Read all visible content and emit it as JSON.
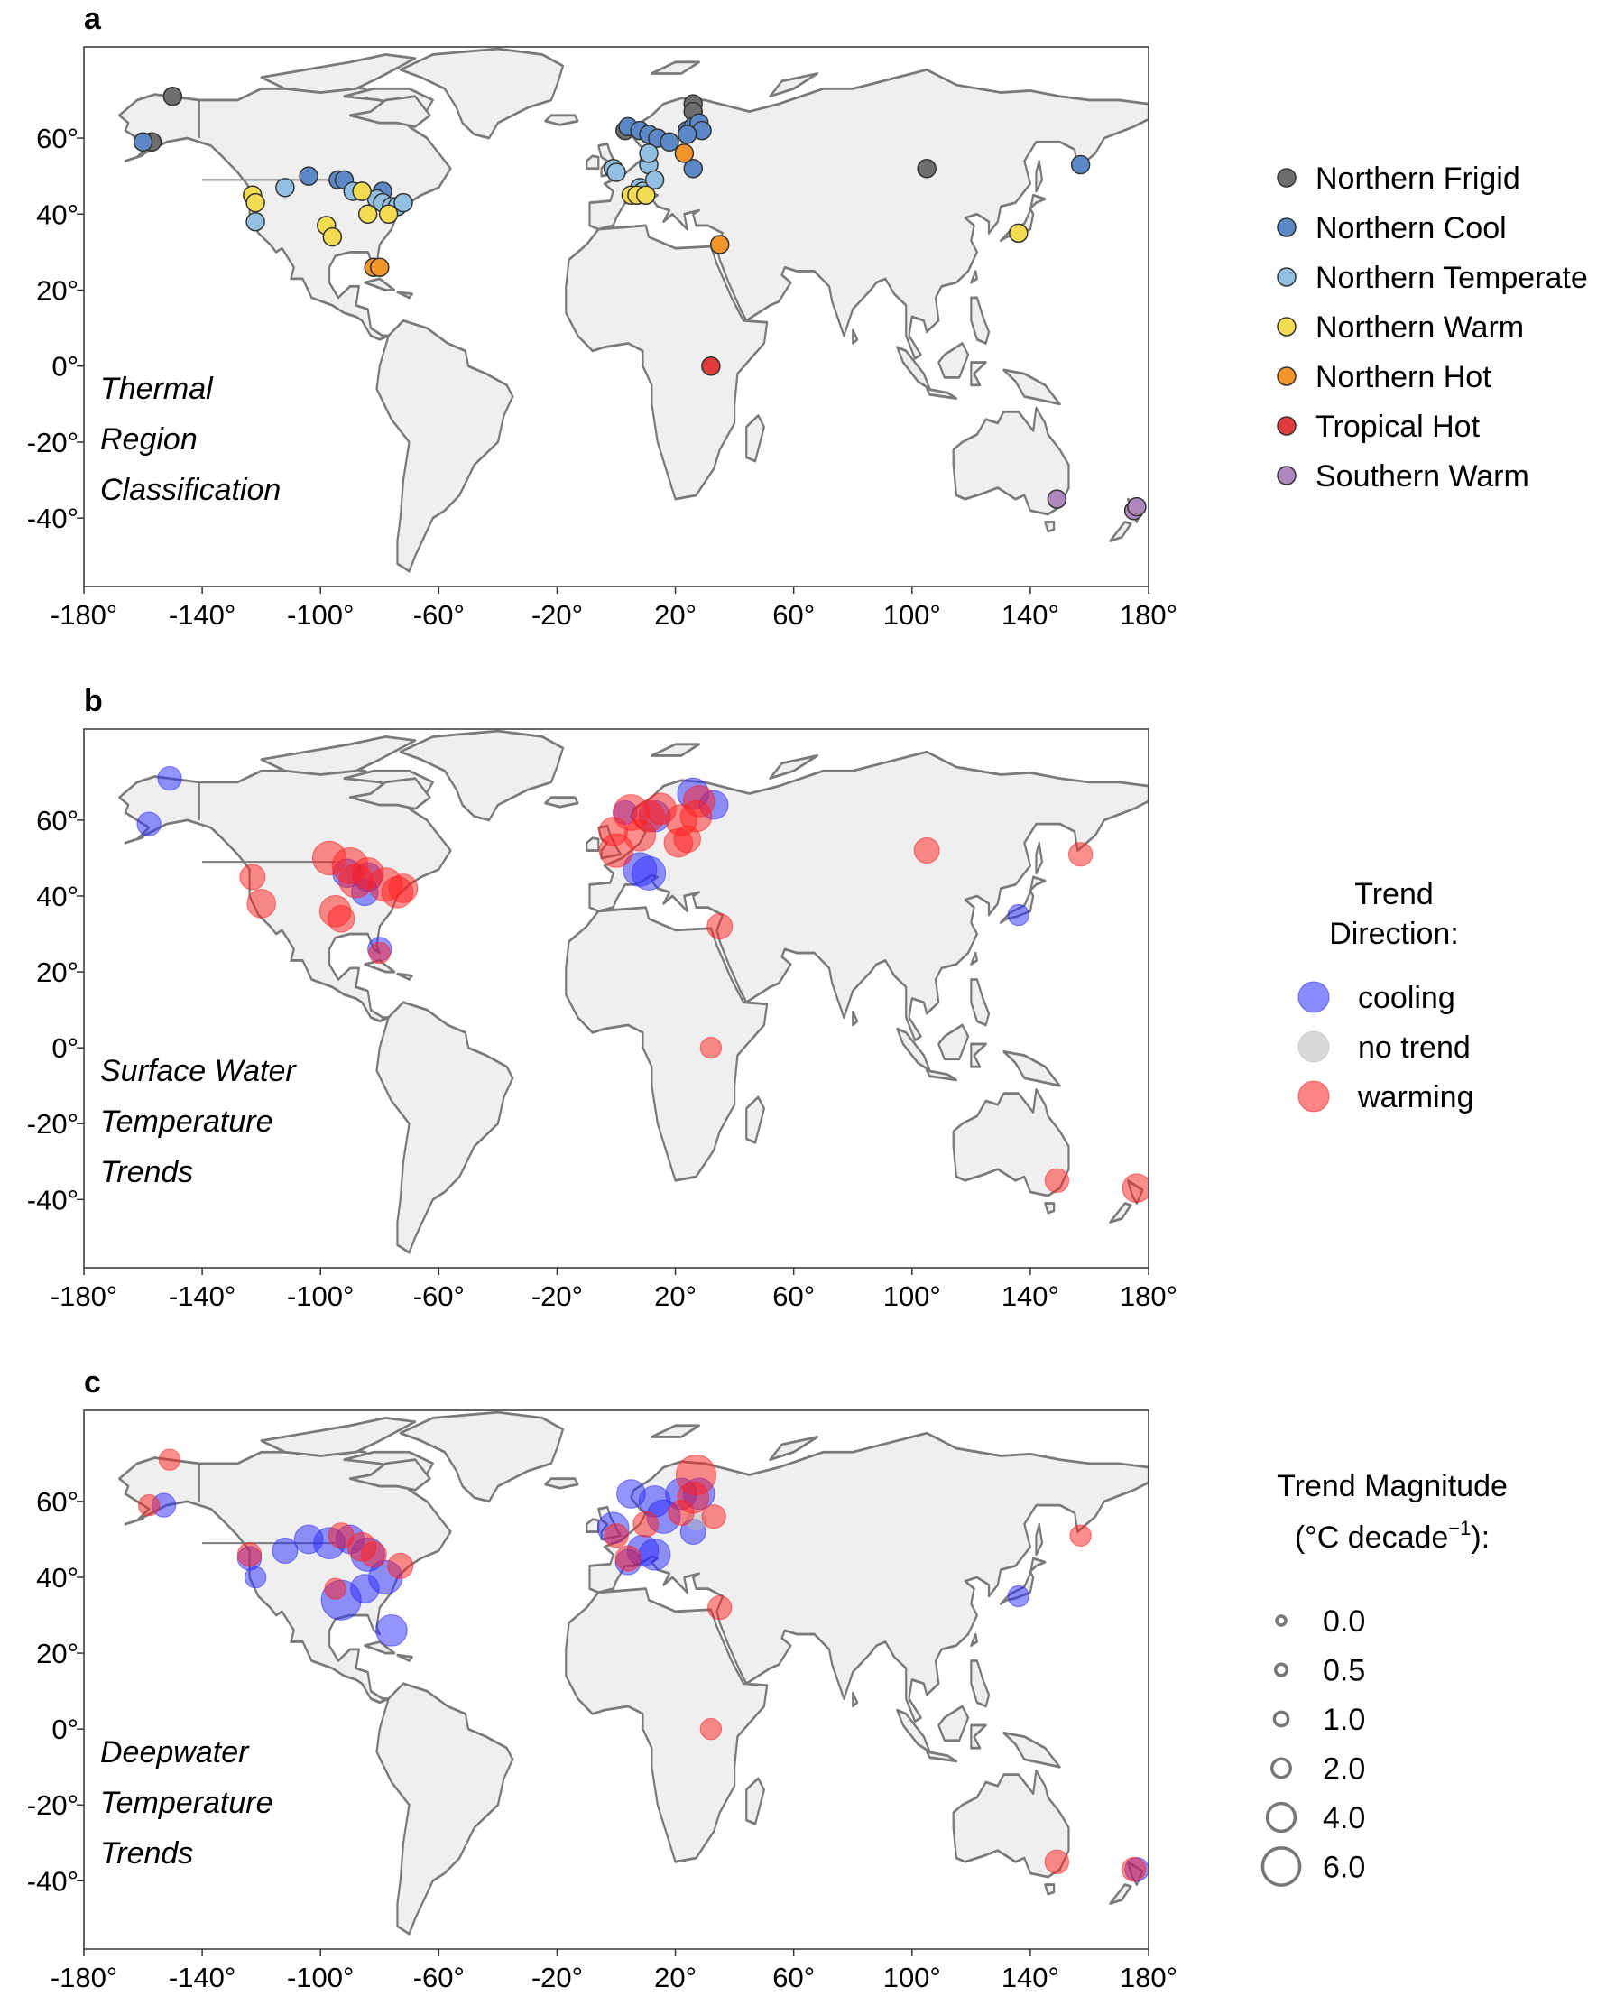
{
  "colors": {
    "land": "#efefef",
    "coast": "#7a7a7a",
    "cooling": "#2b2bff",
    "warming": "#ff2020",
    "no_trend": "#b8b8b8",
    "marker_edge": "#333333"
  },
  "axes": {
    "x_ticks": [
      -180,
      -140,
      -100,
      -60,
      -20,
      20,
      60,
      100,
      140,
      180
    ],
    "x_tick_labels": [
      "-180°",
      "-140°",
      "-100°",
      "-60°",
      "-20°",
      "20°",
      "60°",
      "100°",
      "140°",
      "180°"
    ],
    "y_ticks": [
      60,
      40,
      20,
      0,
      -20,
      -40
    ],
    "y_tick_labels": [
      "60°",
      "40°",
      "20°",
      "0°",
      "-20°",
      "-40°"
    ],
    "xlim": [
      -180,
      180
    ],
    "ylim": [
      -58,
      84
    ]
  },
  "panels": [
    {
      "letter": "a",
      "title_lines": [
        "Thermal",
        "Region",
        "Classification"
      ],
      "legend": {
        "title_lines": [],
        "items": [
          {
            "label": "Northern Frigid",
            "color": "#6e6e6e"
          },
          {
            "label": "Northern Cool",
            "color": "#5b88c7"
          },
          {
            "label": "Northern Temperate",
            "color": "#92c0e2"
          },
          {
            "label": "Northern Warm",
            "color": "#f3dc52"
          },
          {
            "label": "Northern Hot",
            "color": "#f3952a"
          },
          {
            "label": "Tropical Hot",
            "color": "#e03c3c"
          },
          {
            "label": "Southern Warm",
            "color": "#ad87bd"
          }
        ]
      }
    },
    {
      "letter": "b",
      "title_lines": [
        "Surface Water",
        "Temperature",
        "Trends"
      ],
      "legend": {
        "title_lines": [
          "Trend",
          "Direction:"
        ],
        "items": [
          {
            "label": "cooling",
            "color": "#2b2bff"
          },
          {
            "label": "no trend",
            "color": "#b8b8b8"
          },
          {
            "label": "warming",
            "color": "#ff2020"
          }
        ]
      }
    },
    {
      "letter": "c",
      "title_lines": [
        "Deepwater",
        "Temperature",
        "Trends"
      ],
      "legend": {
        "title_lines": [
          "Trend Magnitude",
          "(°C decade",
          "−1",
          "):"
        ],
        "items": [
          {
            "label": "0.0",
            "value": 0.0
          },
          {
            "label": "0.5",
            "value": 0.5
          },
          {
            "label": "1.0",
            "value": 1.0
          },
          {
            "label": "2.0",
            "value": 2.0
          },
          {
            "label": "4.0",
            "value": 4.0
          },
          {
            "label": "6.0",
            "value": 6.0
          }
        ]
      }
    }
  ],
  "chart_data": [
    {
      "type": "scatter",
      "panel": "a",
      "title": "Thermal Region Classification",
      "xlim": [
        -180,
        180
      ],
      "ylim": [
        -58,
        84
      ],
      "series": [
        {
          "name": "Northern Frigid",
          "color": "#6e6e6e",
          "points": [
            [
              -150,
              71
            ],
            [
              -157,
              59
            ],
            [
              26,
              69
            ],
            [
              26,
              67
            ],
            [
              3,
              62
            ],
            [
              105,
              52
            ]
          ]
        },
        {
          "name": "Northern Cool",
          "color": "#5b88c7",
          "points": [
            [
              -160,
              59
            ],
            [
              -104,
              50
            ],
            [
              -94,
              49
            ],
            [
              -92,
              49
            ],
            [
              -86,
              46
            ],
            [
              -79,
              46
            ],
            [
              4,
              63
            ],
            [
              8,
              62
            ],
            [
              11,
              61
            ],
            [
              14,
              60
            ],
            [
              18,
              59
            ],
            [
              24,
              62
            ],
            [
              26,
              63
            ],
            [
              28,
              64
            ],
            [
              29,
              62
            ],
            [
              26,
              52
            ],
            [
              24,
              61
            ],
            [
              157,
              53
            ]
          ]
        },
        {
          "name": "Northern Temperate",
          "color": "#92c0e2",
          "points": [
            [
              -122,
              38
            ],
            [
              -112,
              47
            ],
            [
              -89,
              46
            ],
            [
              -81,
              44
            ],
            [
              -79,
              43
            ],
            [
              -76,
              42
            ],
            [
              -74,
              42
            ],
            [
              -72,
              43
            ],
            [
              -1,
              52
            ],
            [
              0,
              51
            ],
            [
              8,
              47
            ],
            [
              9,
              46
            ],
            [
              11,
              53
            ],
            [
              13,
              49
            ],
            [
              11,
              56
            ]
          ]
        },
        {
          "name": "Northern Warm",
          "color": "#f3dc52",
          "points": [
            [
              -123,
              45
            ],
            [
              -122,
              43
            ],
            [
              -98,
              37
            ],
            [
              -96,
              34
            ],
            [
              -84,
              40
            ],
            [
              -86,
              46
            ],
            [
              -77,
              40
            ],
            [
              5,
              45
            ],
            [
              7,
              45
            ],
            [
              10,
              45
            ],
            [
              136,
              35
            ]
          ]
        },
        {
          "name": "Northern Hot",
          "color": "#f3952a",
          "points": [
            [
              -82,
              26
            ],
            [
              -80,
              26
            ],
            [
              23,
              56
            ],
            [
              35,
              32
            ]
          ]
        },
        {
          "name": "Tropical Hot",
          "color": "#e03c3c",
          "points": [
            [
              32,
              0
            ]
          ]
        },
        {
          "name": "Southern Warm",
          "color": "#ad87bd",
          "points": [
            [
              149,
              -35
            ],
            [
              175,
              -38
            ],
            [
              176,
              -37
            ]
          ]
        }
      ]
    },
    {
      "type": "scatter",
      "panel": "b",
      "title": "Surface Water Temperature Trends",
      "xlim": [
        -180,
        180
      ],
      "ylim": [
        -58,
        84
      ],
      "series": [
        {
          "name": "cooling",
          "points": [
            [
              -151,
              71,
              0.8
            ],
            [
              -158,
              59,
              0.8
            ],
            [
              -91,
              46,
              1.5
            ],
            [
              -84,
              45,
              1.5
            ],
            [
              -85,
              41,
              1.2
            ],
            [
              -80,
              26,
              0.8
            ],
            [
              8,
              47,
              2.5
            ],
            [
              11,
              46,
              2.5
            ],
            [
              13,
              61,
              2
            ],
            [
              26,
              67,
              2
            ],
            [
              33,
              64,
              1.5
            ],
            [
              136,
              35,
              0.5
            ],
            [
              3,
              62,
              0.8
            ]
          ]
        },
        {
          "name": "no trend",
          "points": []
        },
        {
          "name": "warming",
          "points": [
            [
              -123,
              45,
              1
            ],
            [
              -120,
              38,
              1.5
            ],
            [
              -97,
              50,
              2.5
            ],
            [
              -90,
              48,
              3
            ],
            [
              -88,
              44,
              2.5
            ],
            [
              -84,
              46,
              2
            ],
            [
              -78,
              43,
              2.5
            ],
            [
              -74,
              41,
              2
            ],
            [
              -72,
              42,
              1.5
            ],
            [
              -95,
              36,
              2
            ],
            [
              -93,
              34,
              1.2
            ],
            [
              -80,
              25,
              0.5
            ],
            [
              0,
              52,
              2.5
            ],
            [
              -1,
              57,
              1.5
            ],
            [
              8,
              56,
              2
            ],
            [
              5,
              62,
              3
            ],
            [
              11,
              61,
              2
            ],
            [
              15,
              63,
              2
            ],
            [
              22,
              60,
              2
            ],
            [
              27,
              61,
              2
            ],
            [
              28,
              65,
              2
            ],
            [
              21,
              54,
              1.5
            ],
            [
              24,
              55,
              1.2
            ],
            [
              35,
              32,
              1
            ],
            [
              32,
              0,
              0.5
            ],
            [
              105,
              52,
              1
            ],
            [
              157,
              51,
              0.8
            ],
            [
              149,
              -35,
              0.8
            ],
            [
              176,
              -37,
              1.5
            ]
          ]
        }
      ]
    },
    {
      "type": "scatter",
      "panel": "c",
      "title": "Deepwater Temperature Trends",
      "xlim": [
        -180,
        180
      ],
      "ylim": [
        -58,
        84
      ],
      "series": [
        {
          "name": "cooling",
          "points": [
            [
              -153,
              59,
              0.8
            ],
            [
              -124,
              45,
              0.8
            ],
            [
              -122,
              40,
              0.5
            ],
            [
              -112,
              47,
              1
            ],
            [
              -104,
              50,
              1.5
            ],
            [
              -97,
              49,
              2
            ],
            [
              -90,
              50,
              1.5
            ],
            [
              -84,
              46,
              2.5
            ],
            [
              -78,
              40,
              2.5
            ],
            [
              -93,
              34,
              4
            ],
            [
              -76,
              26,
              2
            ],
            [
              -85,
              37,
              1.5
            ],
            [
              -1,
              53,
              2
            ],
            [
              4,
              44,
              1
            ],
            [
              9,
              47,
              2
            ],
            [
              13,
              46,
              2
            ],
            [
              16,
              56,
              2.5
            ],
            [
              5,
              62,
              1.5
            ],
            [
              13,
              60,
              2
            ],
            [
              22,
              62,
              2
            ],
            [
              28,
              62,
              2
            ],
            [
              26,
              52,
              1
            ],
            [
              136,
              35,
              0.5
            ],
            [
              176,
              -37,
              0.8
            ]
          ]
        },
        {
          "name": "no trend",
          "points": [
            [
              27,
              55,
              0.3
            ]
          ]
        },
        {
          "name": "warming",
          "points": [
            [
              -151,
              71,
              0.5
            ],
            [
              -158,
              59,
              0.5
            ],
            [
              -124,
              46,
              0.8
            ],
            [
              -93,
              51,
              1
            ],
            [
              -86,
              48,
              1.5
            ],
            [
              -82,
              46,
              1
            ],
            [
              -73,
              43,
              1
            ],
            [
              -95,
              37,
              0.5
            ],
            [
              0,
              51,
              0.8
            ],
            [
              4,
              45,
              1
            ],
            [
              10,
              54,
              1
            ],
            [
              27,
              67,
              4
            ],
            [
              26,
              61,
              2
            ],
            [
              22,
              57,
              1
            ],
            [
              33,
              56,
              0.8
            ],
            [
              35,
              32,
              0.8
            ],
            [
              32,
              0,
              0.5
            ],
            [
              157,
              51,
              0.5
            ],
            [
              149,
              -35,
              0.8
            ],
            [
              175,
              -37,
              0.8
            ]
          ]
        }
      ]
    }
  ]
}
